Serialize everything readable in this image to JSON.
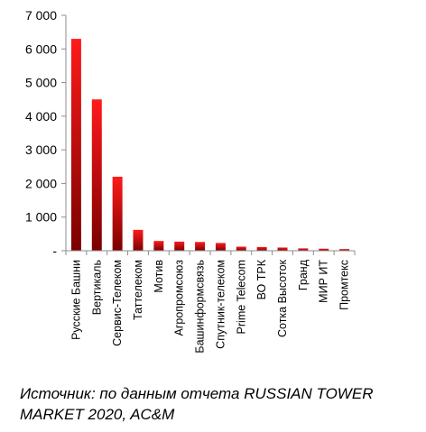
{
  "chart_data": {
    "type": "bar",
    "categories": [
      "Русские Башни",
      "Вертикаль",
      "Сервис-Телеком",
      "Таттелеком",
      "Мотив",
      "Агропромсоюз",
      "Башинформсвязь",
      "Спутник-телеком",
      "Prime Telecom",
      "ВО ТРК",
      "Сотка Высоток",
      "Гранд",
      "МИР ИТ",
      "Промтекс"
    ],
    "values": [
      6300,
      4500,
      2200,
      620,
      290,
      270,
      260,
      230,
      120,
      110,
      95,
      70,
      60,
      50
    ],
    "ylim": [
      0,
      7000
    ],
    "yticks": [
      0,
      1000,
      2000,
      3000,
      4000,
      5000,
      6000,
      7000
    ],
    "ytick_labels": [
      "-",
      "1 000",
      "2 000",
      "3 000",
      "4 000",
      "5 000",
      "6 000",
      "7 000"
    ],
    "grid": false,
    "colors": {
      "bar_top": "#ff1a1a",
      "bar_bottom": "#7a0000",
      "axis": "#8c8c8c"
    }
  },
  "source_note": "Источник: по данным отчета RUSSIAN TOWER MARKET 2020, AC&M"
}
